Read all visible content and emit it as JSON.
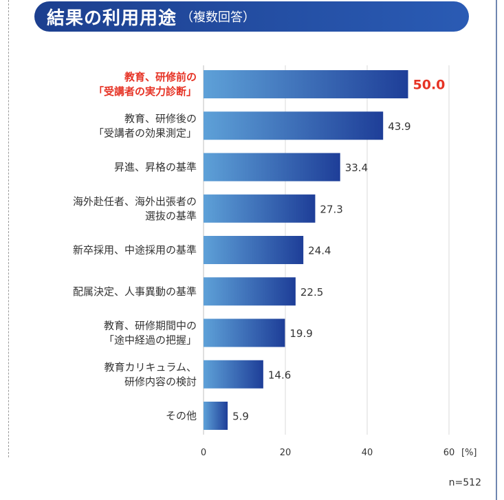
{
  "header": {
    "title": "結果の利用用途",
    "subtitle": "（複数回答）"
  },
  "note": "n=512",
  "colors": {
    "header": "#2a5bb4",
    "bar_light": "#5ea1d8",
    "bar_dark": "#1e3e98",
    "highlight": "#e63325",
    "text": "#333333",
    "grid": "#d9d9d9"
  },
  "chart_data": {
    "type": "bar",
    "orientation": "horizontal",
    "title": "結果の利用用途",
    "subtitle": "（複数回答）",
    "unit": "[%]",
    "xlim": [
      0,
      60
    ],
    "ticks": [
      "0",
      "20",
      "40",
      "60"
    ],
    "highlight_index": 0,
    "categories": [
      [
        "教育、研修前の",
        "「受講者の実力診断」"
      ],
      [
        "教育、研修後の",
        "「受講者の効果測定」"
      ],
      [
        "昇進、昇格の基準"
      ],
      [
        "海外赴任者、海外出張者の",
        "選抜の基準"
      ],
      [
        "新卒採用、中途採用の基準"
      ],
      [
        "配属決定、人事異動の基準"
      ],
      [
        "教育、研修期間中の",
        "「途中経過の把握」"
      ],
      [
        "教育カリキュラム、",
        "研修内容の検討"
      ],
      [
        "その他"
      ]
    ],
    "values": [
      50.0,
      43.9,
      33.4,
      27.3,
      24.4,
      22.5,
      19.9,
      14.6,
      5.9
    ],
    "labels": [
      "50.0",
      "43.9",
      "33.4",
      "27.3",
      "24.4",
      "22.5",
      "19.9",
      "14.6",
      "5.9"
    ]
  }
}
